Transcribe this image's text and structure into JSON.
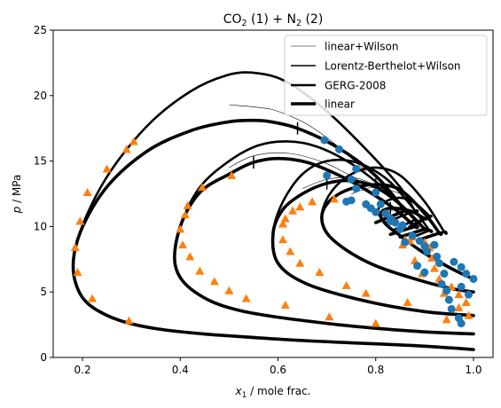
{
  "chart_data": {
    "type": "line",
    "title": {
      "base1": "CO",
      "sub1": "2",
      "mid": " (1) + N",
      "sub2": "2",
      "end": " (2)"
    },
    "xlabel": {
      "var": "x",
      "sub": "1",
      "rest": " / mole frac."
    },
    "ylabel": {
      "var": "p",
      "rest": " / MPa"
    },
    "xlim": [
      0.14,
      1.04
    ],
    "ylim": [
      0,
      25
    ],
    "xticks": [
      0.2,
      0.4,
      0.6,
      0.8,
      1.0
    ],
    "yticks": [
      0,
      5,
      10,
      15,
      20,
      25
    ],
    "xtick_labels": [
      "0.2",
      "0.4",
      "0.6",
      "0.8",
      "1.0"
    ],
    "ytick_labels": [
      "0",
      "5",
      "10",
      "15",
      "20",
      "25"
    ],
    "grid": false,
    "legend": {
      "placement": "top-right",
      "entries": [
        {
          "label": "linear+Wilson",
          "width_key": "thin"
        },
        {
          "label": "Lorentz-Berthelot+Wilson",
          "width_key": "medium"
        },
        {
          "label": "GERG-2008",
          "width_key": "thick"
        },
        {
          "label": "linear",
          "width_key": "heavy"
        }
      ]
    },
    "styles": {
      "line_color": "#000000",
      "widths": {
        "thin": 0.6,
        "medium": 1.5,
        "thick": 2.6,
        "heavy": 3.6
      },
      "triangle_color": "#ff7f0e",
      "circle_color": "#1f77b4"
    },
    "envelopes": [
      {
        "xl": [
          1.0,
          0.88,
          0.6,
          0.35,
          0.23,
          0.185,
          0.19,
          0.245,
          0.33,
          0.42,
          0.5,
          0.56,
          0.6,
          0.64
        ],
        "pl": [
          0.6,
          0.9,
          1.4,
          2.2,
          3.6,
          5.8,
          9.0,
          12.8,
          15.7,
          17.3,
          18.0,
          18.1,
          17.9,
          17.5
        ],
        "xr": [
          0.64,
          0.7,
          0.76,
          0.81,
          0.86
        ],
        "pr": [
          17.5,
          16.5,
          15.1,
          13.5,
          11.2
        ],
        "tail": [
          [
            0.86,
            11.2
          ],
          [
            0.8,
            10.3
          ]
        ],
        "gerg": {
          "xl": [
            1.0,
            0.88,
            0.6,
            0.35,
            0.23,
            0.185,
            0.19,
            0.245,
            0.33,
            0.42,
            0.5,
            0.56
          ],
          "pl": [
            0.6,
            0.9,
            1.4,
            2.2,
            3.6,
            5.8,
            9.0,
            13.5,
            17.6,
            20.3,
            21.6,
            21.7
          ],
          "xr": [
            0.56,
            0.62,
            0.7,
            0.78,
            0.85,
            0.88
          ],
          "pr": [
            21.7,
            21.0,
            18.8,
            15.9,
            13.0,
            11.2
          ],
          "tail": [
            [
              0.88,
              11.2
            ],
            [
              0.82,
              10.3
            ]
          ]
        },
        "thin": {
          "xl": [
            0.5,
            0.56,
            0.6
          ],
          "pl": [
            19.3,
            19.1,
            18.8
          ],
          "xr": [
            0.6,
            0.66,
            0.72,
            0.78
          ],
          "pr": [
            18.8,
            17.8,
            16.2,
            14.2
          ]
        }
      },
      {
        "xl": [
          1.0,
          0.88,
          0.7,
          0.52,
          0.43,
          0.39,
          0.4,
          0.44,
          0.5,
          0.55
        ],
        "pl": [
          1.8,
          2.0,
          2.6,
          3.6,
          5.0,
          7.0,
          10.0,
          12.6,
          14.0,
          14.9
        ],
        "xr": [
          0.55,
          0.6,
          0.66,
          0.72,
          0.78,
          0.84,
          0.88
        ],
        "pr": [
          14.9,
          15.2,
          14.9,
          14.0,
          12.8,
          11.3,
          10.0
        ],
        "tail": [
          [
            0.88,
            10.0
          ],
          [
            0.83,
            9.4
          ]
        ],
        "gerg": {
          "xl": [
            1.0,
            0.88,
            0.7,
            0.52,
            0.43,
            0.39,
            0.4,
            0.44,
            0.5,
            0.56
          ],
          "pl": [
            1.8,
            2.0,
            2.6,
            3.6,
            5.0,
            7.0,
            10.0,
            13.0,
            15.0,
            16.2
          ],
          "xr": [
            0.56,
            0.62,
            0.68,
            0.75,
            0.82,
            0.88
          ],
          "pr": [
            16.2,
            16.5,
            16.1,
            14.8,
            12.8,
            10.5
          ],
          "tail": [
            [
              0.88,
              10.5
            ],
            [
              0.84,
              9.8
            ]
          ]
        },
        "thin": {
          "xl": [
            0.5,
            0.55
          ],
          "pl": [
            14.5,
            15.4
          ],
          "xr": [
            0.55,
            0.62,
            0.7,
            0.78
          ],
          "pr": [
            15.4,
            15.6,
            14.8,
            13.2
          ]
        }
      },
      {
        "xl": [
          1.0,
          0.9,
          0.78,
          0.66,
          0.6,
          0.59,
          0.61,
          0.65,
          0.7
        ],
        "pl": [
          3.2,
          3.5,
          4.3,
          5.6,
          7.2,
          9.5,
          11.3,
          12.5,
          13.3
        ],
        "xr": [
          0.7,
          0.75,
          0.8,
          0.85,
          0.9
        ],
        "pr": [
          13.3,
          13.5,
          13.0,
          11.7,
          9.8
        ],
        "tail": [
          [
            0.9,
            9.8
          ],
          [
            0.85,
            9.2
          ]
        ],
        "gerg": {
          "xl": [
            1.0,
            0.9,
            0.78,
            0.66,
            0.6,
            0.59,
            0.61,
            0.65,
            0.7
          ],
          "pl": [
            3.2,
            3.5,
            4.3,
            5.6,
            7.2,
            9.5,
            11.9,
            14.0,
            15.0
          ],
          "xr": [
            0.7,
            0.76,
            0.82,
            0.87,
            0.91
          ],
          "pr": [
            15.0,
            14.9,
            13.7,
            11.7,
            9.7
          ],
          "tail": [
            [
              0.91,
              9.7
            ],
            [
              0.87,
              9.1
            ]
          ]
        },
        "thin": {
          "xl": [
            0.65,
            0.7
          ],
          "pl": [
            12.9,
            13.6
          ],
          "xr": [
            0.7,
            0.76,
            0.82
          ],
          "pr": [
            13.6,
            13.7,
            12.8
          ]
        }
      },
      {
        "xl": [
          1.0,
          0.95,
          0.88,
          0.8,
          0.74,
          0.7,
          0.69,
          0.71,
          0.75,
          0.8
        ],
        "pl": [
          5.0,
          5.3,
          6.0,
          7.0,
          8.2,
          9.5,
          10.9,
          12.1,
          12.9,
          13.2
        ],
        "xr": [
          0.8,
          0.85,
          0.9,
          0.93
        ],
        "pr": [
          13.2,
          12.8,
          11.0,
          9.5
        ],
        "tail": [
          [
            0.93,
            9.5
          ],
          [
            0.89,
            9.0
          ]
        ],
        "gerg": {
          "xl": [
            1.0,
            0.95,
            0.88,
            0.8,
            0.74,
            0.7,
            0.69,
            0.71,
            0.75,
            0.8
          ],
          "pl": [
            5.0,
            5.3,
            6.0,
            7.0,
            8.2,
            9.5,
            11.0,
            12.7,
            14.0,
            14.5
          ],
          "xr": [
            0.8,
            0.85,
            0.9,
            0.94
          ],
          "pr": [
            14.5,
            13.9,
            11.9,
            9.6
          ],
          "tail": [
            [
              0.94,
              9.6
            ],
            [
              0.9,
              9.1
            ]
          ]
        },
        "thin": {
          "xl": [
            0.75,
            0.8
          ],
          "pl": [
            12.5,
            13.0
          ],
          "xr": [
            0.8,
            0.86
          ],
          "pr": [
            13.0,
            12.4
          ]
        }
      },
      {
        "xl": [
          1.0,
          0.97,
          0.93,
          0.89,
          0.85,
          0.82,
          0.81,
          0.83
        ],
        "pl": [
          6.0,
          6.5,
          7.3,
          8.2,
          9.3,
          10.2,
          11.0,
          11.4
        ],
        "xr": [
          0.83,
          0.87,
          0.9
        ],
        "pr": [
          11.4,
          11.2,
          10.6
        ],
        "tail": [
          [
            0.9,
            10.6
          ],
          [
            0.87,
            10.0
          ]
        ],
        "gerg": {
          "xl": [
            1.0,
            0.97,
            0.93,
            0.89,
            0.85,
            0.82,
            0.805,
            0.82,
            0.85
          ],
          "pl": [
            6.0,
            6.5,
            7.3,
            8.2,
            9.3,
            10.2,
            11.2,
            11.9,
            12.2
          ],
          "xr": [
            0.85,
            0.88,
            0.91
          ],
          "pr": [
            12.2,
            11.8,
            10.8
          ],
          "tail": [
            [
              0.91,
              10.8
            ],
            [
              0.88,
              10.1
            ]
          ]
        },
        "thin": {
          "xl": [
            0.82,
            0.85
          ],
          "pl": [
            11.0,
            11.4
          ],
          "xr": [
            0.85,
            0.88
          ],
          "pr": [
            11.4,
            11.0
          ]
        }
      }
    ],
    "triangles": [
      [
        0.195,
        10.4
      ],
      [
        0.19,
        6.5
      ],
      [
        0.185,
        8.4
      ],
      [
        0.21,
        12.6
      ],
      [
        0.22,
        4.5
      ],
      [
        0.25,
        14.4
      ],
      [
        0.29,
        15.9
      ],
      [
        0.305,
        16.5
      ],
      [
        0.295,
        2.8
      ],
      [
        0.4,
        9.8
      ],
      [
        0.405,
        8.6
      ],
      [
        0.41,
        10.9
      ],
      [
        0.415,
        11.6
      ],
      [
        0.42,
        7.7
      ],
      [
        0.445,
        13.0
      ],
      [
        0.505,
        13.9
      ],
      [
        0.44,
        6.6
      ],
      [
        0.47,
        5.8
      ],
      [
        0.5,
        5.1
      ],
      [
        0.535,
        4.5
      ],
      [
        0.615,
        4.0
      ],
      [
        0.61,
        10.2
      ],
      [
        0.61,
        9.0
      ],
      [
        0.615,
        10.6
      ],
      [
        0.625,
        8.1
      ],
      [
        0.63,
        11.2
      ],
      [
        0.645,
        11.5
      ],
      [
        0.67,
        11.9
      ],
      [
        0.715,
        12.1
      ],
      [
        0.645,
        7.2
      ],
      [
        0.685,
        6.5
      ],
      [
        0.74,
        5.5
      ],
      [
        0.78,
        4.9
      ],
      [
        0.705,
        3.1
      ],
      [
        0.8,
        2.6
      ],
      [
        0.855,
        8.6
      ],
      [
        0.86,
        9.0
      ],
      [
        0.87,
        8.9
      ],
      [
        0.875,
        9.2
      ],
      [
        0.88,
        7.4
      ],
      [
        0.895,
        6.4
      ],
      [
        0.94,
        4.9
      ],
      [
        0.97,
        3.8
      ],
      [
        0.945,
        2.9
      ],
      [
        0.865,
        4.2
      ],
      [
        0.9,
        8.8
      ],
      [
        0.91,
        8.4
      ],
      [
        0.915,
        7.6
      ],
      [
        0.92,
        6.8
      ],
      [
        0.93,
        6.0
      ],
      [
        0.955,
        5.4
      ],
      [
        0.97,
        4.8
      ],
      [
        0.985,
        4.2
      ],
      [
        0.99,
        3.2
      ]
    ],
    "circles": [
      [
        0.695,
        16.6
      ],
      [
        0.725,
        15.9
      ],
      [
        0.76,
        14.4
      ],
      [
        0.75,
        13.6
      ],
      [
        0.76,
        12.9
      ],
      [
        0.8,
        12.6
      ],
      [
        0.81,
        11.7
      ],
      [
        0.82,
        11.0
      ],
      [
        0.7,
        13.9
      ],
      [
        0.75,
        12.0
      ],
      [
        0.79,
        11.4
      ],
      [
        0.83,
        10.6
      ],
      [
        0.84,
        10.3
      ],
      [
        0.85,
        9.8
      ],
      [
        0.74,
        11.9
      ],
      [
        0.78,
        11.7
      ],
      [
        0.8,
        11.1
      ],
      [
        0.83,
        10.4
      ],
      [
        0.855,
        10.1
      ],
      [
        0.875,
        9.3
      ],
      [
        0.86,
        8.8
      ],
      [
        0.89,
        8.9
      ],
      [
        0.9,
        8.5
      ],
      [
        0.905,
        8.1
      ],
      [
        0.92,
        8.6
      ],
      [
        0.925,
        7.7
      ],
      [
        0.93,
        7.2
      ],
      [
        0.885,
        7.0
      ],
      [
        0.9,
        6.5
      ],
      [
        0.94,
        6.4
      ],
      [
        0.935,
        5.6
      ],
      [
        0.945,
        5.1
      ],
      [
        0.95,
        4.4
      ],
      [
        0.955,
        3.7
      ],
      [
        0.96,
        7.3
      ],
      [
        0.975,
        6.9
      ],
      [
        0.985,
        6.4
      ],
      [
        1.0,
        6.0
      ],
      [
        0.975,
        5.4
      ],
      [
        0.99,
        4.8
      ],
      [
        0.97,
        3.0
      ],
      [
        0.975,
        2.6
      ]
    ]
  }
}
